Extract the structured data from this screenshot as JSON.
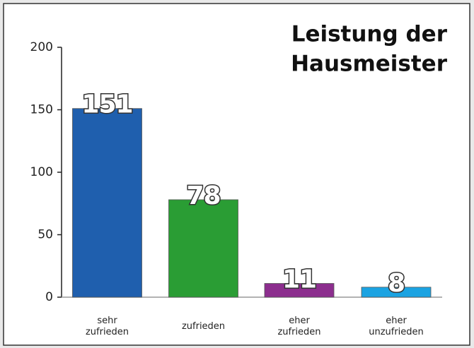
{
  "chart_data": {
    "type": "bar",
    "title": [
      "Leistung der",
      "Hausmeister"
    ],
    "categories": [
      [
        "sehr",
        "zufrieden"
      ],
      [
        "zufrieden"
      ],
      [
        "eher",
        "zufrieden"
      ],
      [
        "eher",
        "unzufrieden"
      ]
    ],
    "values": [
      151,
      78,
      11,
      8
    ],
    "colors": [
      "#1f5fae",
      "#2a9d34",
      "#8c2e8e",
      "#1ba3e2"
    ],
    "ylim": [
      0,
      200
    ],
    "yticks": [
      0,
      50,
      100,
      150,
      200
    ]
  }
}
